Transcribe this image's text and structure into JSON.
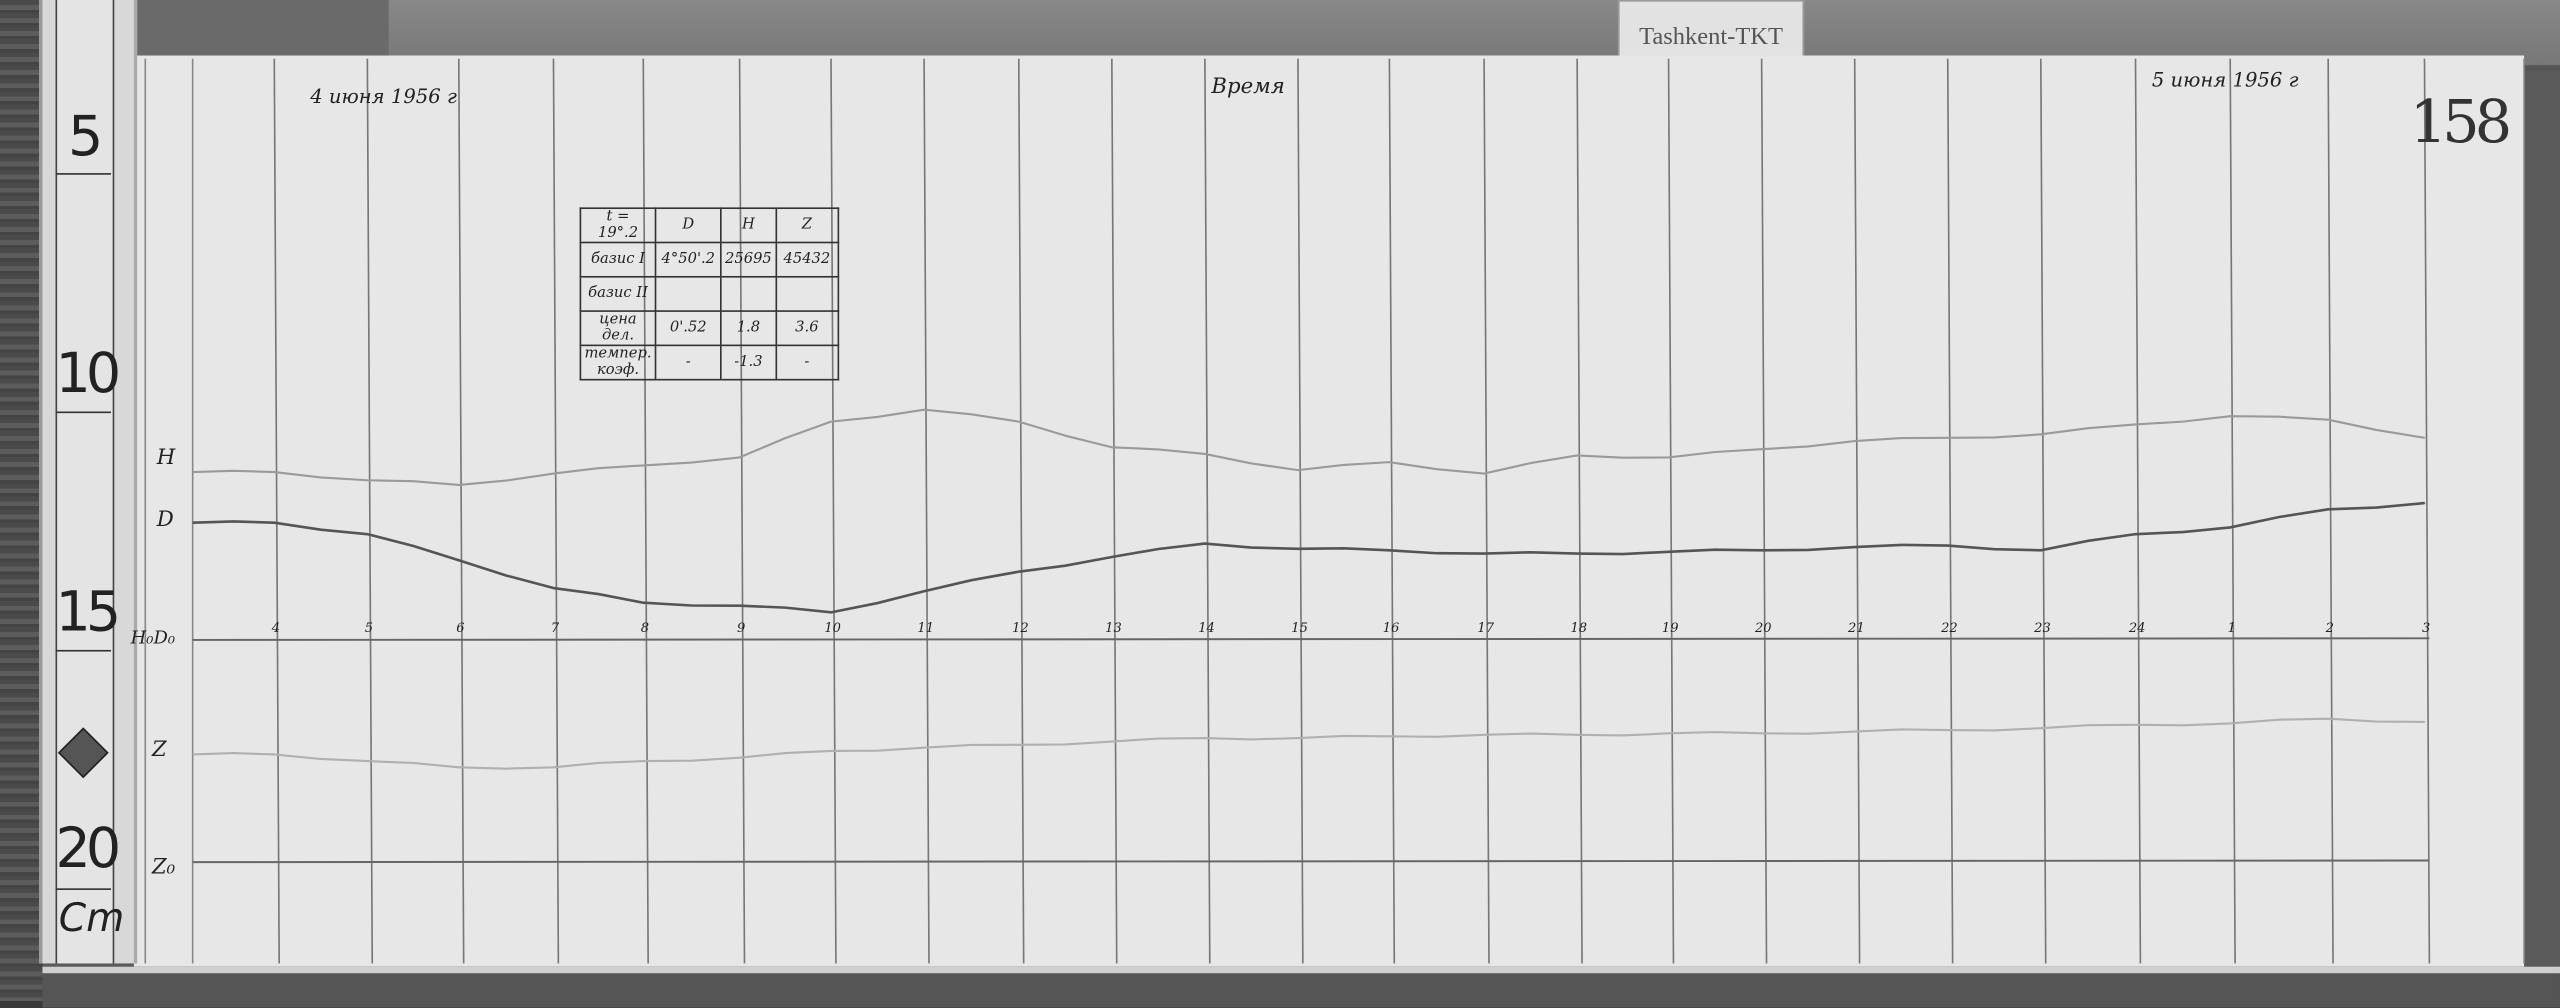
{
  "station_tag": "Tashkent-TKT",
  "sheet_number": "158",
  "date_start": "4 июня 1956 г",
  "date_end": "5 июня 1956 г",
  "time_label": "Время",
  "ruler": {
    "marks": [
      "5",
      "10",
      "15",
      "20"
    ],
    "unit": "Cm"
  },
  "trace_labels": {
    "h": "H",
    "d": "D",
    "h0d0": "H₀D₀",
    "z": "Z",
    "z0": "Z₀"
  },
  "note_table": {
    "header": [
      "t = 19°.2",
      "D",
      "H",
      "Z"
    ],
    "rows": [
      [
        "базис I",
        "4°50'.2",
        "25695",
        "45432"
      ],
      [
        "базис II",
        "",
        "",
        ""
      ],
      [
        "цена дел.",
        "0'.52",
        "1.8",
        "3.6"
      ],
      [
        "темпер. коэф.",
        "-",
        "-1.3",
        "-"
      ]
    ]
  },
  "chart_data": {
    "type": "line",
    "title": "",
    "xlabel": "Время",
    "ylabel": "",
    "y_unit": "Cm",
    "ylim": [
      3,
      22.5
    ],
    "grid": true,
    "categories": [
      "4",
      "5",
      "6",
      "7",
      "8",
      "9",
      "10",
      "11",
      "12",
      "13",
      "14",
      "15",
      "16",
      "17",
      "18",
      "19",
      "20",
      "21",
      "22",
      "23",
      "24",
      "1",
      "2",
      "3"
    ],
    "series": [
      {
        "name": "H",
        "color": "#9a9a9a",
        "values": [
          11.99,
          12.16,
          12.26,
          12.02,
          11.85,
          11.68,
          10.93,
          10.68,
          10.93,
          11.47,
          11.61,
          11.95,
          11.78,
          12.02,
          11.64,
          11.68,
          11.51,
          11.34,
          11.27,
          11.2,
          10.99,
          10.82,
          10.89,
          11.27
        ]
      },
      {
        "name": "D",
        "color": "#555555",
        "values": [
          13.05,
          13.29,
          13.84,
          14.42,
          14.73,
          14.79,
          14.93,
          14.49,
          14.08,
          13.77,
          13.49,
          13.6,
          13.63,
          13.7,
          13.7,
          13.66,
          13.63,
          13.56,
          13.53,
          13.63,
          13.29,
          13.15,
          12.77,
          12.64
        ]
      },
      {
        "name": "Z",
        "color": "#b0b0b0",
        "values": [
          17.91,
          18.05,
          18.18,
          18.18,
          18.05,
          17.98,
          17.84,
          17.77,
          17.71,
          17.64,
          17.57,
          17.57,
          17.53,
          17.5,
          17.5,
          17.47,
          17.47,
          17.43,
          17.4,
          17.36,
          17.29,
          17.26,
          17.16,
          17.23
        ]
      }
    ],
    "baselines": [
      {
        "name": "H₀D₀",
        "value": 15.51
      },
      {
        "name": "Z₀",
        "value": 20.17
      }
    ]
  }
}
